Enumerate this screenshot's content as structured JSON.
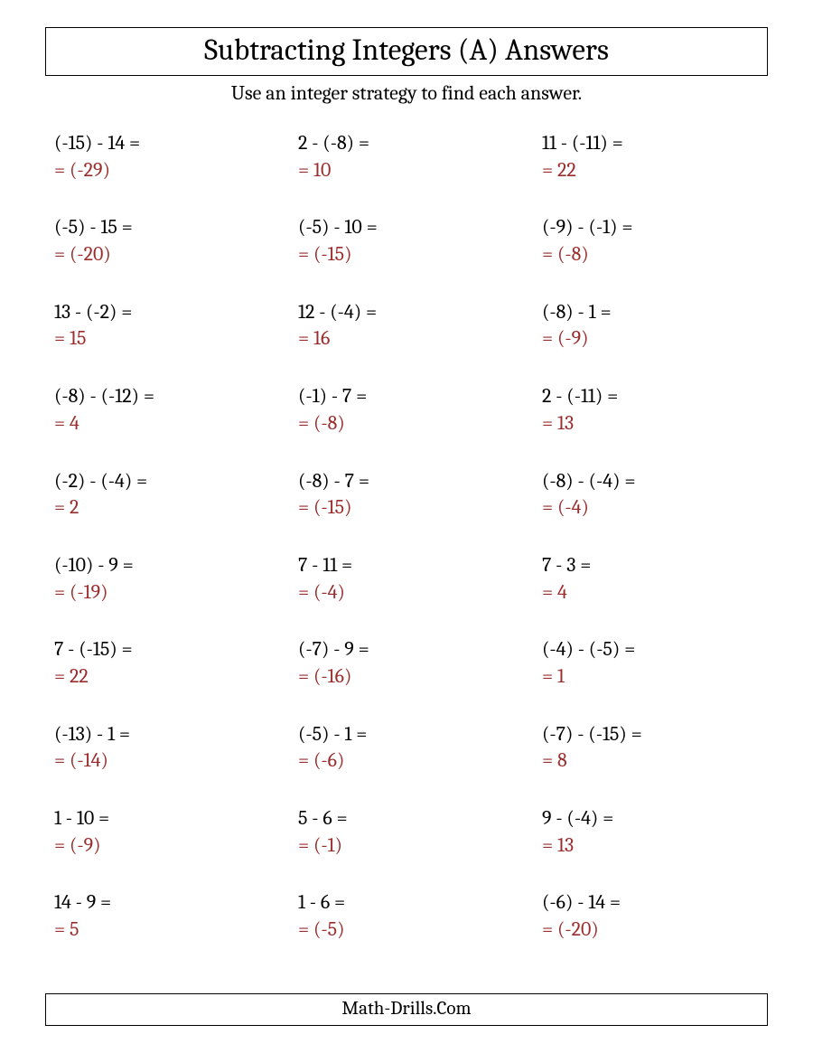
{
  "title": "Subtracting Integers (A) Answers",
  "subtitle": "Use an integer strategy to find each answer.",
  "footer": "Math-Drills.Com",
  "colors": {
    "text": "#000000",
    "answer": "#9b2d2d",
    "border": "#000000",
    "background": "#ffffff"
  },
  "layout": {
    "columns": 3,
    "rows": 10,
    "problem_fontsize": 22,
    "title_fontsize": 33,
    "subtitle_fontsize": 22
  },
  "problems": [
    {
      "q": "(-15) - 14 =",
      "a": "= (-29)"
    },
    {
      "q": "2 - (-8) =",
      "a": "= 10"
    },
    {
      "q": "11 - (-11) =",
      "a": "= 22"
    },
    {
      "q": "(-5) - 15 =",
      "a": "= (-20)"
    },
    {
      "q": "(-5) - 10 =",
      "a": "= (-15)"
    },
    {
      "q": "(-9) - (-1) =",
      "a": "= (-8)"
    },
    {
      "q": "13 - (-2) =",
      "a": "= 15"
    },
    {
      "q": "12 - (-4) =",
      "a": "= 16"
    },
    {
      "q": "(-8) - 1 =",
      "a": "= (-9)"
    },
    {
      "q": "(-8) - (-12) =",
      "a": "= 4"
    },
    {
      "q": "(-1) - 7 =",
      "a": "= (-8)"
    },
    {
      "q": "2 - (-11) =",
      "a": "= 13"
    },
    {
      "q": "(-2) - (-4) =",
      "a": "= 2"
    },
    {
      "q": "(-8) - 7 =",
      "a": "= (-15)"
    },
    {
      "q": "(-8) - (-4) =",
      "a": "= (-4)"
    },
    {
      "q": "(-10) - 9 =",
      "a": "= (-19)"
    },
    {
      "q": "7 - 11 =",
      "a": "= (-4)"
    },
    {
      "q": "7 - 3 =",
      "a": "= 4"
    },
    {
      "q": "7 - (-15) =",
      "a": "= 22"
    },
    {
      "q": "(-7) - 9 =",
      "a": "= (-16)"
    },
    {
      "q": "(-4) - (-5) =",
      "a": "= 1"
    },
    {
      "q": "(-13) - 1 =",
      "a": "= (-14)"
    },
    {
      "q": "(-5) - 1 =",
      "a": "= (-6)"
    },
    {
      "q": "(-7) - (-15) =",
      "a": "= 8"
    },
    {
      "q": "1 - 10 =",
      "a": "= (-9)"
    },
    {
      "q": "5 - 6 =",
      "a": "= (-1)"
    },
    {
      "q": "9 - (-4) =",
      "a": "= 13"
    },
    {
      "q": "14 - 9 =",
      "a": "= 5"
    },
    {
      "q": "1 - 6 =",
      "a": "= (-5)"
    },
    {
      "q": "(-6) - 14 =",
      "a": "= (-20)"
    }
  ]
}
